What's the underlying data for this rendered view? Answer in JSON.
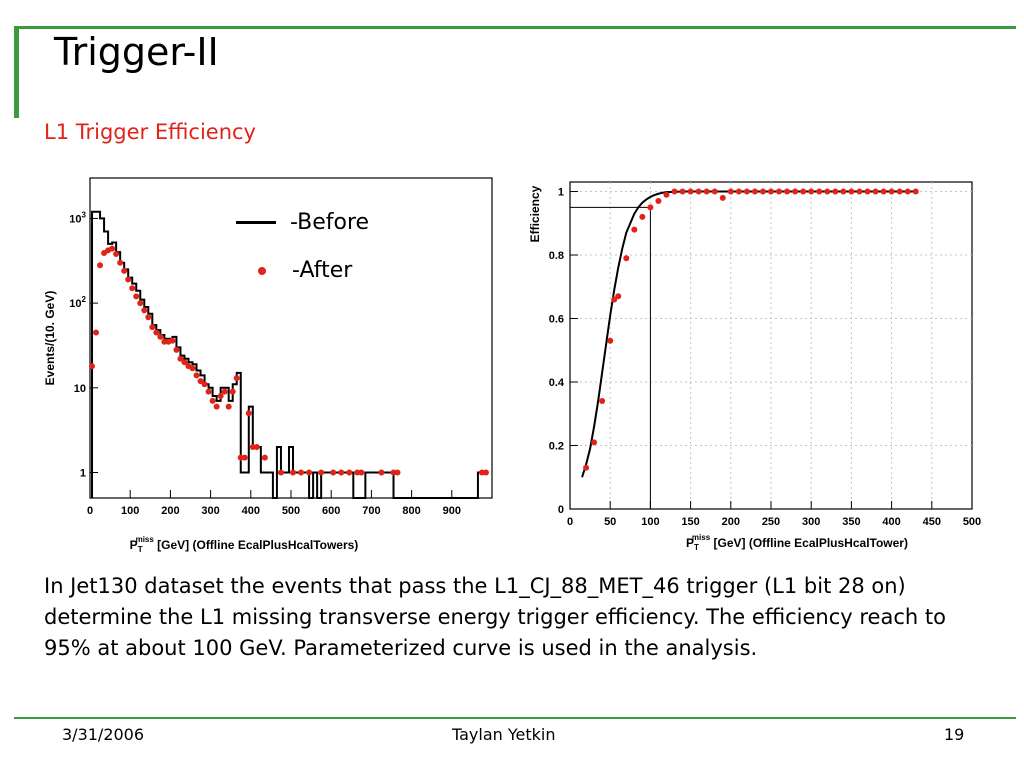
{
  "slide": {
    "title": "Trigger-II",
    "subtitle": "L1 Trigger Efficiency",
    "body": "In Jet130 dataset the events that pass the L1_CJ_88_MET_46 trigger (L1 bit 28 on) determine the L1 missing transverse energy trigger efficiency. The efficiency reach to 95% at about 100 GeV. Parameterized curve is used in the analysis.",
    "footer": {
      "date": "3/31/2006",
      "author": "Taylan Yetkin",
      "page": "19"
    }
  },
  "legend": {
    "before": "-Before",
    "after": "-After"
  },
  "colors": {
    "accent_green": "#3a9b3a",
    "subtitle_red": "#e0241a",
    "marker_red": "#e0241a"
  },
  "chart_data": [
    {
      "type": "line",
      "ylabel": "Events/(10. GeV)",
      "xlabel": "P_T^miss [GeV] (Offline EcalPlusHcalTowers)",
      "xlabel_main": "P",
      "xlabel_sub": "T",
      "xlabel_sup": "miss",
      "xlabel_rest": " [GeV] (Offline EcalPlusHcalTowers)",
      "xlim": [
        0,
        1000
      ],
      "ylim": [
        0.5,
        3000
      ],
      "yscale": "log",
      "xticks": [
        0,
        100,
        200,
        300,
        400,
        500,
        600,
        700,
        800,
        900
      ],
      "yticks": [
        {
          "value": 1000,
          "label": "10",
          "sup": "3"
        },
        {
          "value": 100,
          "label": "10",
          "sup": "2"
        },
        {
          "value": 10,
          "label": "10",
          "sup": ""
        },
        {
          "value": 1,
          "label": "1",
          "sup": ""
        }
      ],
      "series": [
        {
          "name": "-Before",
          "style": "histogram",
          "x": [
            10,
            20,
            30,
            40,
            50,
            60,
            70,
            80,
            90,
            100,
            110,
            120,
            130,
            140,
            150,
            160,
            170,
            180,
            190,
            200,
            210,
            220,
            230,
            240,
            250,
            260,
            270,
            280,
            290,
            300,
            310,
            320,
            330,
            340,
            350,
            360,
            370,
            380,
            390,
            400,
            410,
            420,
            430,
            440,
            450,
            460,
            470,
            480,
            490,
            500,
            510,
            520,
            530,
            540,
            550,
            560,
            570,
            580,
            590,
            600,
            610,
            620,
            630,
            640,
            650,
            660,
            670,
            680,
            690,
            700,
            710,
            720,
            730,
            740,
            750,
            760,
            770,
            780,
            790,
            800,
            810,
            820,
            830,
            840,
            850,
            860,
            870,
            880,
            890,
            900,
            910,
            920,
            930,
            940,
            950,
            960,
            970,
            980
          ],
          "values": [
            1200,
            1200,
            1000,
            700,
            500,
            520,
            400,
            300,
            250,
            200,
            170,
            140,
            110,
            90,
            75,
            55,
            48,
            42,
            38,
            38,
            40,
            30,
            24,
            22,
            20,
            19,
            16,
            14,
            11,
            10,
            8,
            7,
            10,
            10,
            7,
            11,
            15,
            1,
            1,
            6,
            2,
            2,
            1,
            1,
            1,
            0.5,
            2,
            1,
            1,
            2,
            1,
            1,
            1,
            1,
            0.5,
            1,
            0.5,
            1,
            1,
            1,
            1,
            1,
            1,
            1,
            1,
            0.5,
            0.5,
            0.5,
            1,
            1,
            1,
            1,
            1,
            1,
            1,
            0.5,
            0.5,
            0.5,
            0.5,
            0.5,
            0.5,
            0.5,
            0.5,
            0.5,
            0.5,
            0.5,
            0.5,
            0.5,
            0.5,
            0.5,
            0.5,
            0.5,
            0.5,
            0.5,
            0.5,
            0.5,
            1,
            1
          ]
        },
        {
          "name": "-After",
          "style": "markers",
          "x": [
            5,
            15,
            25,
            35,
            45,
            55,
            65,
            75,
            85,
            95,
            105,
            115,
            125,
            135,
            145,
            155,
            165,
            175,
            185,
            195,
            205,
            215,
            225,
            235,
            245,
            255,
            265,
            275,
            285,
            295,
            305,
            315,
            325,
            335,
            345,
            355,
            365,
            375,
            385,
            395,
            405,
            415,
            435,
            475,
            505,
            525,
            545,
            575,
            605,
            625,
            645,
            665,
            675,
            725,
            755,
            765,
            975,
            985
          ],
          "values": [
            18,
            45,
            280,
            390,
            420,
            440,
            380,
            300,
            240,
            190,
            150,
            120,
            100,
            82,
            68,
            52,
            45,
            40,
            35,
            35,
            36,
            28,
            22,
            20,
            18,
            17,
            14,
            12,
            11,
            9,
            7,
            6,
            8,
            9,
            6,
            9,
            13,
            1.5,
            1.5,
            5,
            2,
            2,
            1.5,
            1,
            1,
            1,
            1,
            1,
            1,
            1,
            1,
            1,
            1,
            1,
            1,
            1,
            1,
            1
          ]
        }
      ]
    },
    {
      "type": "scatter",
      "ylabel": "Efficiency",
      "xlabel": "P_T^miss [GeV] (Offline EcalPlusHcalTower)",
      "xlabel_main": "P",
      "xlabel_sub": "T",
      "xlabel_sup": "miss",
      "xlabel_rest": " [GeV] (Offline EcalPlusHcalTower)",
      "xlim": [
        0,
        500
      ],
      "ylim": [
        0,
        1.03
      ],
      "xticks": [
        0,
        50,
        100,
        150,
        200,
        250,
        300,
        350,
        400,
        450,
        500
      ],
      "yticks": [
        0.2,
        0.4,
        0.6,
        0.8,
        1
      ],
      "grid": true,
      "reference_line": {
        "x": 100,
        "y": 0.95
      },
      "series": [
        {
          "name": "",
          "style": "markers",
          "x": [
            20,
            30,
            40,
            50,
            55,
            60,
            70,
            80,
            90,
            100,
            110,
            120,
            130,
            140,
            150,
            160,
            170,
            180,
            190,
            200,
            210,
            220,
            230,
            240,
            250,
            260,
            270,
            280,
            290,
            300,
            310,
            320,
            330,
            340,
            350,
            360,
            370,
            380,
            390,
            400,
            410,
            420,
            430
          ],
          "values": [
            0.13,
            0.21,
            0.34,
            0.53,
            0.66,
            0.67,
            0.79,
            0.88,
            0.92,
            0.95,
            0.97,
            0.99,
            1,
            1,
            1,
            1,
            1,
            1,
            0.98,
            1,
            1,
            1,
            1,
            1,
            1,
            1,
            1,
            1,
            1,
            1,
            1,
            1,
            1,
            1,
            1,
            1,
            1,
            1,
            1,
            1,
            1,
            1,
            1
          ]
        },
        {
          "name": "",
          "style": "fit-curve",
          "x": [
            15,
            20,
            25,
            30,
            35,
            40,
            45,
            50,
            55,
            60,
            65,
            70,
            75,
            80,
            85,
            90,
            95,
            100,
            105,
            110,
            115,
            120,
            130,
            140,
            160,
            200,
            300,
            430
          ],
          "values": [
            0.1,
            0.14,
            0.19,
            0.26,
            0.34,
            0.43,
            0.52,
            0.61,
            0.69,
            0.76,
            0.82,
            0.87,
            0.9,
            0.93,
            0.95,
            0.965,
            0.975,
            0.983,
            0.989,
            0.993,
            0.996,
            0.998,
            0.999,
            1,
            1,
            1,
            1,
            1
          ]
        }
      ]
    }
  ]
}
